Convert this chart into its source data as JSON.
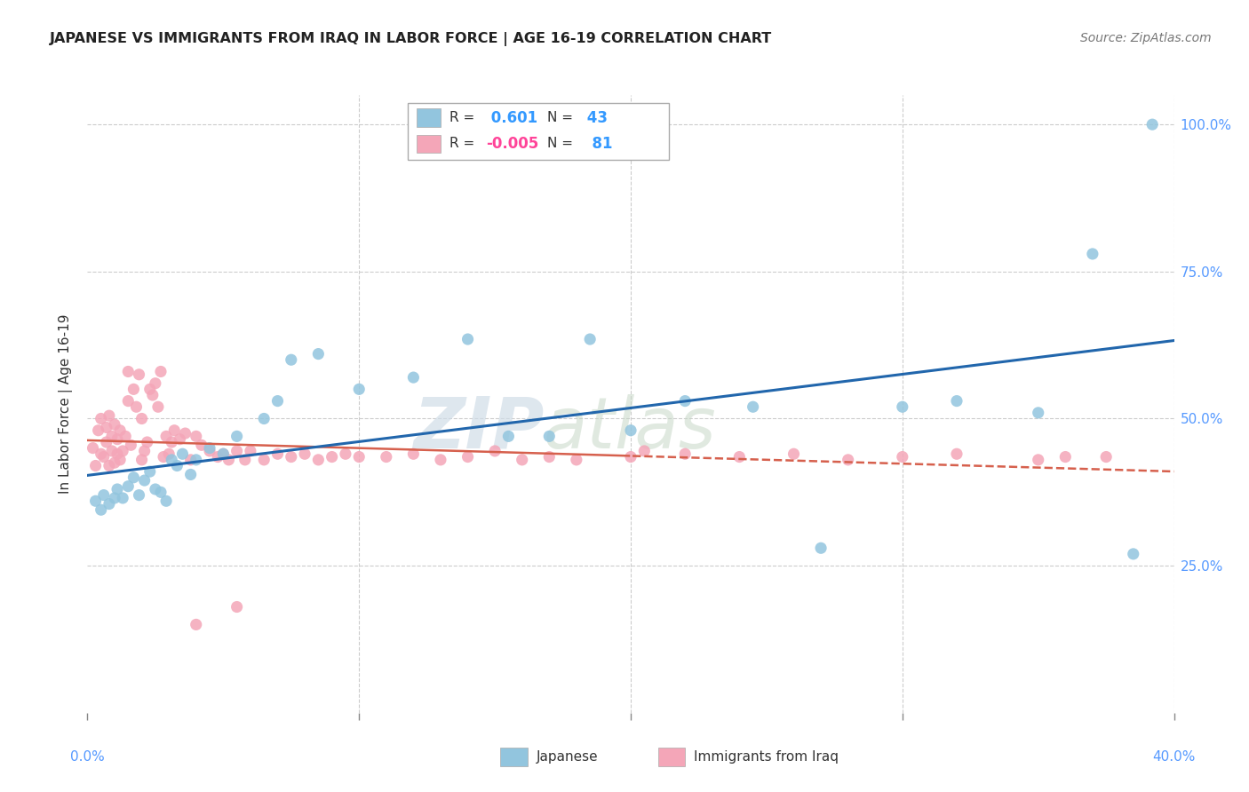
{
  "title": "JAPANESE VS IMMIGRANTS FROM IRAQ IN LABOR FORCE | AGE 16-19 CORRELATION CHART",
  "source": "Source: ZipAtlas.com",
  "ylabel_label": "In Labor Force | Age 16-19",
  "legend_blue_label": "Japanese",
  "legend_pink_label": "Immigrants from Iraq",
  "R_blue": 0.601,
  "N_blue": 43,
  "R_pink": -0.005,
  "N_pink": 81,
  "watermark_zip": "ZIP",
  "watermark_atlas": "atlas",
  "blue_color": "#92c5de",
  "pink_color": "#f4a6b8",
  "blue_line_color": "#2166ac",
  "pink_line_color": "#d6604d",
  "grid_color": "#cccccc",
  "background_color": "#ffffff",
  "tick_color": "#5599ff",
  "xlim": [
    0,
    40
  ],
  "ylim": [
    0,
    105
  ],
  "blue_x": [
    0.3,
    0.5,
    0.6,
    0.8,
    1.0,
    1.1,
    1.3,
    1.5,
    1.7,
    1.9,
    2.1,
    2.3,
    2.5,
    2.7,
    2.9,
    3.1,
    3.3,
    3.5,
    3.8,
    4.0,
    4.5,
    5.0,
    5.5,
    6.5,
    7.0,
    7.5,
    8.5,
    10.0,
    12.0,
    14.0,
    15.5,
    17.0,
    18.5,
    20.0,
    22.0,
    24.5,
    27.0,
    30.0,
    32.0,
    35.0,
    37.0,
    38.5,
    39.2
  ],
  "blue_y": [
    36.0,
    34.5,
    37.0,
    35.5,
    36.5,
    38.0,
    36.5,
    38.5,
    40.0,
    37.0,
    39.5,
    41.0,
    38.0,
    37.5,
    36.0,
    43.0,
    42.0,
    44.0,
    40.5,
    43.0,
    45.0,
    44.0,
    47.0,
    50.0,
    53.0,
    60.0,
    61.0,
    55.0,
    57.0,
    63.5,
    47.0,
    47.0,
    63.5,
    48.0,
    53.0,
    52.0,
    28.0,
    52.0,
    53.0,
    51.0,
    78.0,
    27.0,
    100.0
  ],
  "pink_x": [
    0.2,
    0.3,
    0.4,
    0.5,
    0.5,
    0.6,
    0.7,
    0.7,
    0.8,
    0.8,
    0.9,
    0.9,
    1.0,
    1.0,
    1.1,
    1.1,
    1.2,
    1.2,
    1.3,
    1.4,
    1.5,
    1.5,
    1.6,
    1.7,
    1.8,
    1.9,
    2.0,
    2.0,
    2.1,
    2.2,
    2.3,
    2.4,
    2.5,
    2.6,
    2.7,
    2.8,
    2.9,
    3.0,
    3.1,
    3.2,
    3.4,
    3.6,
    3.8,
    4.0,
    4.2,
    4.5,
    4.8,
    5.0,
    5.2,
    5.5,
    5.8,
    6.0,
    6.5,
    7.0,
    7.5,
    8.0,
    8.5,
    9.0,
    9.5,
    10.0,
    11.0,
    12.0,
    13.0,
    14.0,
    15.0,
    16.0,
    17.0,
    18.0,
    20.0,
    22.0,
    24.0,
    26.0,
    28.0,
    30.0,
    32.0,
    35.0,
    36.0,
    37.5,
    5.5,
    20.5,
    4.0
  ],
  "pink_y": [
    45.0,
    42.0,
    48.0,
    44.0,
    50.0,
    43.5,
    46.0,
    48.5,
    42.0,
    50.5,
    44.5,
    47.0,
    42.5,
    49.0,
    44.0,
    46.5,
    43.0,
    48.0,
    44.5,
    47.0,
    58.0,
    53.0,
    45.5,
    55.0,
    52.0,
    57.5,
    43.0,
    50.0,
    44.5,
    46.0,
    55.0,
    54.0,
    56.0,
    52.0,
    58.0,
    43.5,
    47.0,
    44.0,
    46.0,
    48.0,
    46.5,
    47.5,
    43.0,
    47.0,
    45.5,
    44.5,
    43.5,
    44.0,
    43.0,
    44.5,
    43.0,
    44.5,
    43.0,
    44.0,
    43.5,
    44.0,
    43.0,
    43.5,
    44.0,
    43.5,
    43.5,
    44.0,
    43.0,
    43.5,
    44.5,
    43.0,
    43.5,
    43.0,
    43.5,
    44.0,
    43.5,
    44.0,
    43.0,
    43.5,
    44.0,
    43.0,
    43.5,
    43.5,
    18.0,
    44.5,
    15.0
  ]
}
